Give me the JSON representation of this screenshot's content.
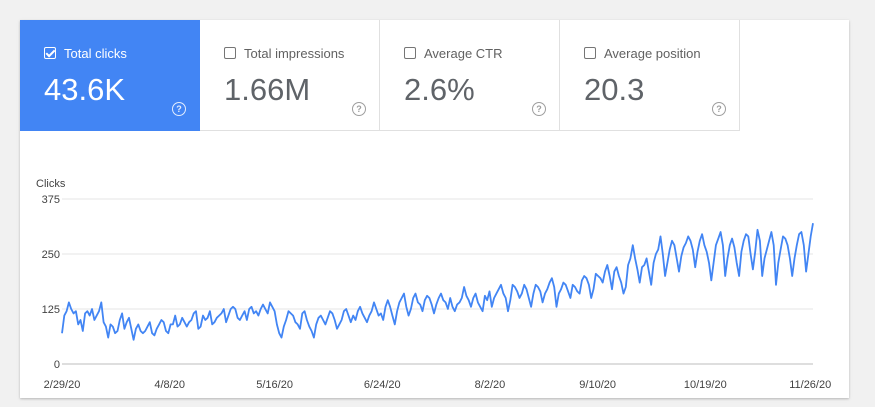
{
  "metrics": [
    {
      "label": "Total clicks",
      "value": "43.6K",
      "active": true,
      "help": "?"
    },
    {
      "label": "Total impressions",
      "value": "1.66M",
      "active": false,
      "help": "?"
    },
    {
      "label": "Average CTR",
      "value": "2.6%",
      "active": false,
      "help": "?"
    },
    {
      "label": "Average position",
      "value": "20.3",
      "active": false,
      "help": "?"
    }
  ],
  "chart_data": {
    "type": "line",
    "ylabel": "Clicks",
    "ylim": [
      0,
      375
    ],
    "yticks": [
      "0",
      "125",
      "250",
      "375"
    ],
    "xticks": [
      "2/29/20",
      "4/8/20",
      "5/16/20",
      "6/24/20",
      "8/2/20",
      "9/10/20",
      "10/19/20",
      "11/26/20"
    ],
    "x_range": [
      "2/29/20",
      "11/27/20"
    ],
    "grid": true,
    "color": "#4285f4",
    "series": [
      {
        "values": [
          70,
          110,
          120,
          140,
          125,
          115,
          120,
          90,
          100,
          75,
          115,
          120,
          110,
          125,
          100,
          110,
          120,
          140,
          95,
          85,
          60,
          90,
          85,
          70,
          75,
          100,
          115,
          80,
          95,
          105,
          80,
          55,
          80,
          90,
          75,
          70,
          75,
          85,
          95,
          70,
          65,
          80,
          90,
          100,
          95,
          75,
          70,
          90,
          90,
          110,
          85,
          90,
          105,
          95,
          85,
          95,
          100,
          115,
          120,
          80,
          85,
          110,
          100,
          105,
          120,
          90,
          95,
          105,
          110,
          115,
          125,
          95,
          110,
          125,
          130,
          125,
          105,
          100,
          110,
          120,
          100,
          125,
          130,
          115,
          120,
          110,
          125,
          135,
          125,
          115,
          140,
          130,
          120,
          90,
          70,
          60,
          85,
          100,
          120,
          115,
          110,
          95,
          90,
          80,
          115,
          120,
          100,
          85,
          75,
          60,
          90,
          105,
          110,
          100,
          90,
          105,
          120,
          115,
          100,
          80,
          90,
          100,
          120,
          125,
          110,
          95,
          110,
          100,
          120,
          130,
          115,
          105,
          95,
          110,
          120,
          140,
          125,
          110,
          115,
          100,
          130,
          145,
          130,
          110,
          90,
          120,
          140,
          150,
          160,
          130,
          110,
          125,
          150,
          160,
          140,
          135,
          120,
          145,
          155,
          150,
          135,
          115,
          135,
          150,
          160,
          145,
          140,
          125,
          150,
          130,
          120,
          135,
          140,
          150,
          175,
          155,
          145,
          130,
          150,
          160,
          140,
          130,
          120,
          155,
          145,
          165,
          130,
          150,
          160,
          170,
          180,
          160,
          150,
          120,
          145,
          180,
          175,
          165,
          150,
          160,
          180,
          170,
          150,
          130,
          160,
          180,
          175,
          165,
          140,
          160,
          170,
          185,
          195,
          175,
          130,
          160,
          170,
          185,
          180,
          165,
          150,
          180,
          175,
          165,
          160,
          190,
          200,
          195,
          180,
          150,
          170,
          205,
          200,
          195,
          185,
          210,
          225,
          200,
          170,
          210,
          220,
          200,
          185,
          160,
          175,
          225,
          240,
          270,
          240,
          215,
          185,
          220,
          225,
          240,
          210,
          180,
          230,
          250,
          260,
          290,
          250,
          200,
          230,
          260,
          280,
          270,
          240,
          210,
          245,
          265,
          275,
          290,
          280,
          260,
          220,
          255,
          280,
          295,
          270,
          255,
          230,
          190,
          230,
          270,
          285,
          300,
          270,
          200,
          240,
          270,
          285,
          265,
          230,
          200,
          255,
          280,
          295,
          290,
          250,
          215,
          255,
          305,
          280,
          200,
          240,
          260,
          280,
          300,
          270,
          180,
          230,
          260,
          290,
          285,
          270,
          240,
          200,
          240,
          270,
          295,
          300,
          270,
          210,
          250,
          290,
          320
        ]
      }
    ]
  }
}
